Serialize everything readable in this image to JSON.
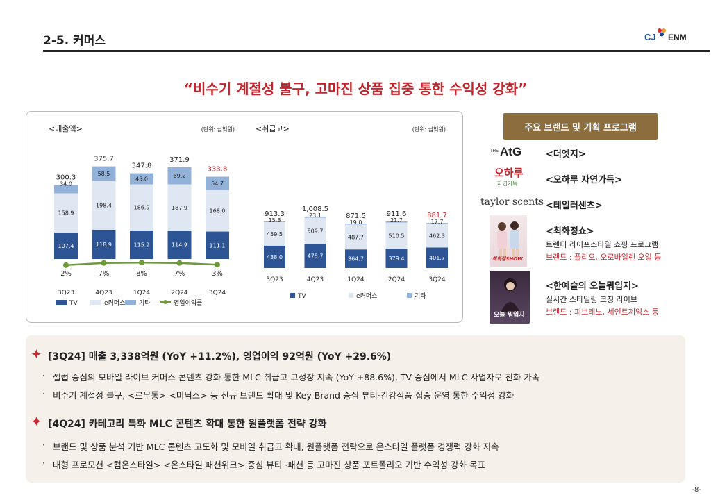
{
  "section_title": "2-5. 커머스",
  "logo": {
    "left": "CJ",
    "right": "ENM"
  },
  "headline": "“비수기 계절성 불구, 고마진 상품 집중 통한 수익성 강화”",
  "chart_data": [
    {
      "type": "bar",
      "subtype": "stacked",
      "title": "<매출액>",
      "unit_note": "(단위: 십억원)",
      "categories": [
        "3Q23",
        "4Q23",
        "1Q24",
        "2Q24",
        "3Q24"
      ],
      "series": [
        {
          "name": "TV",
          "values": [
            107.4,
            118.9,
            115.9,
            114.9,
            111.1
          ],
          "color": "#2d5596"
        },
        {
          "name": "e커머스",
          "values": [
            158.9,
            198.4,
            186.9,
            187.9,
            168.0
          ],
          "color": "#dfe7f3"
        },
        {
          "name": "기타",
          "values": [
            34.0,
            58.5,
            45.0,
            69.2,
            54.7
          ],
          "color": "#93b2da"
        }
      ],
      "totals": [
        "300.3",
        "375.7",
        "347.8",
        "371.9",
        "333.8"
      ],
      "total_highlight_color": "#c0262c",
      "line_series": {
        "name": "영업이익률",
        "values": [
          2,
          7,
          8,
          7,
          3
        ],
        "labels": [
          "2%",
          "7%",
          "8%",
          "7%",
          "3%"
        ],
        "color": "#6f9a3c"
      }
    },
    {
      "type": "bar",
      "subtype": "stacked",
      "title": "<취급고>",
      "unit_note": "(단위: 십억원)",
      "categories": [
        "3Q23",
        "4Q23",
        "1Q24",
        "2Q24",
        "3Q24"
      ],
      "series": [
        {
          "name": "TV",
          "values": [
            438.0,
            475.7,
            364.7,
            379.4,
            401.7
          ],
          "color": "#2d5596"
        },
        {
          "name": "e커머스",
          "values": [
            459.5,
            509.7,
            487.7,
            510.5,
            462.3
          ],
          "color": "#dfe7f3"
        },
        {
          "name": "기타",
          "values": [
            15.8,
            23.1,
            19.0,
            21.7,
            17.7
          ],
          "color": "#93b2da"
        }
      ],
      "totals": [
        "913.3",
        "1,008.5",
        "871.5",
        "911.6",
        "881.7"
      ],
      "total_highlight_color": "#c0262c"
    }
  ],
  "brands": {
    "banner": "주요 브랜드 및 기획 프로그램",
    "atg": {
      "logo_main": "AtG",
      "logo_prefix": "THE",
      "name": "<더엣지>"
    },
    "ohharu": {
      "logo_main": "오하루",
      "logo_sub": "자연가득",
      "name": "<오하루 자연가득>"
    },
    "taylor": {
      "logo_main": "taylor scents",
      "name": "<테일러센츠>"
    },
    "choehwa": {
      "name": "<최화정쇼>",
      "desc": "트렌디 라이프스타일 쇼핑 프로그램",
      "brands": "브랜드 : 플리오, 오로바일렌 오일 등",
      "thumb_text": "최화정SHOW"
    },
    "hanye": {
      "name": "<한예슬의 오늘뭐입지>",
      "desc": "실시간 스타일링 코칭 라이브",
      "brands": "브랜드 : 피브레노, 세인트제임스 등",
      "thumb_text": "오늘 뭐입지"
    }
  },
  "summary": [
    {
      "title": "[3Q24] 매출 3,338억원 (YoY +11.2%), 영업이익 92억원 (YoY +29.6%)",
      "bullets": [
        "셀럽 중심의 모바일 라이브 커머스 콘텐츠 강화 통한 MLC 취급고 고성장 지속 (YoY +88.6%), TV 중심에서 MLC 사업자로 진화 가속",
        "비수기 계절성 불구, <르무통> <미닉스> 등 신규 브랜드 확대 및 Key Brand 중심 뷰티·건강식품 집중 운영 통한 수익성 강화"
      ]
    },
    {
      "title": "[4Q24] 카테고리 특화 MLC 콘텐츠 확대 통한 원플랫폼 전략 강화",
      "bullets": [
        "브랜드 및 상품 분석 기반 MLC 콘텐츠 고도화 및 모바일 취급고 확대, 원플랫폼 전략으로 온스타일 플랫폼 경쟁력 강화 지속",
        "대형 프로모션 <컴온스타일> <온스타일 패션위크> 중심 뷰티 ·패션 등 고마진 상품 포트폴리오 기반 수익성 강화 목표"
      ]
    }
  ],
  "bullet_mark": "·",
  "plus_mark": "✦",
  "page_number": "-8-"
}
